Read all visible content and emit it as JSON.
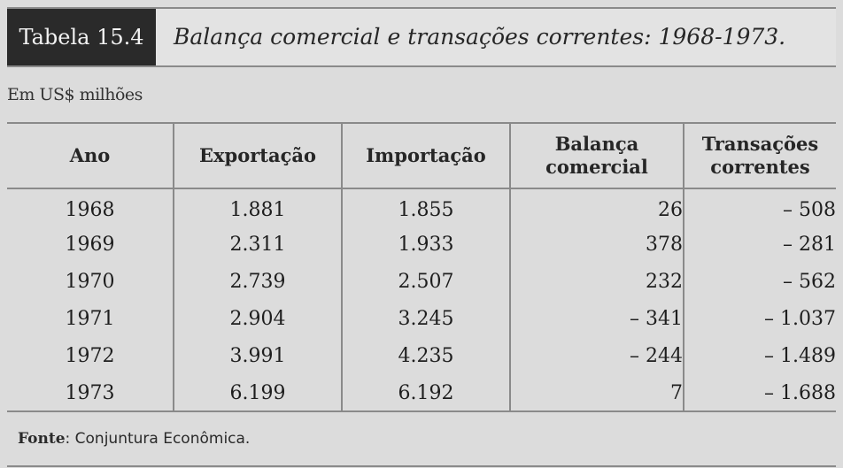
{
  "title": {
    "label": "Tabela 15.4",
    "caption": "Balança comercial e transações correntes: 1968-1973."
  },
  "unit_note": "Em US$ milhões",
  "table": {
    "headers": {
      "year": "Ano",
      "exports": "Exportação",
      "imports": "Importação",
      "trade_balance_line1": "Balança",
      "trade_balance_line2": "comercial",
      "current_account_line1": "Transações",
      "current_account_line2": "correntes"
    },
    "rows": [
      {
        "year": "1968",
        "exports": "1.881",
        "imports": "1.855",
        "trade_balance": "26",
        "current_account": "– 508"
      },
      {
        "year": "1969",
        "exports": "2.311",
        "imports": "1.933",
        "trade_balance": "378",
        "current_account": "– 281"
      },
      {
        "year": "1970",
        "exports": "2.739",
        "imports": "2.507",
        "trade_balance": "232",
        "current_account": "– 562"
      },
      {
        "year": "1971",
        "exports": "2.904",
        "imports": "3.245",
        "trade_balance": "– 341",
        "current_account": "– 1.037"
      },
      {
        "year": "1972",
        "exports": "3.991",
        "imports": "4.235",
        "trade_balance": "– 244",
        "current_account": "– 1.489"
      },
      {
        "year": "1973",
        "exports": "6.199",
        "imports": "6.192",
        "trade_balance": "7",
        "current_account": "– 1.688"
      }
    ]
  },
  "footer": {
    "source_label": "Fonte",
    "source_text": ": Conjuntura Econômica."
  }
}
